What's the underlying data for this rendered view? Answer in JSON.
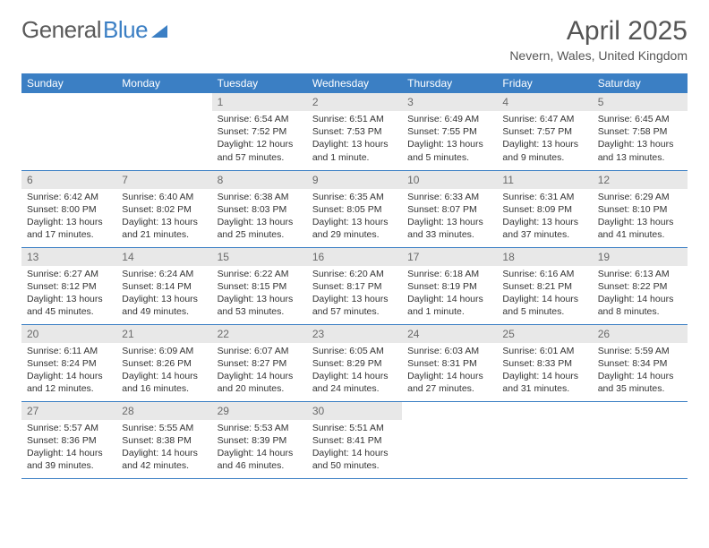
{
  "logo": {
    "text_gray": "General",
    "text_blue": "Blue"
  },
  "header": {
    "month": "April 2025",
    "location": "Nevern, Wales, United Kingdom"
  },
  "colors": {
    "header_bg": "#3b7fc4",
    "header_text": "#ffffff",
    "daynum_bg": "#e8e8e8",
    "daynum_text": "#6a6a6a",
    "body_text": "#333333",
    "row_border": "#3b7fc4"
  },
  "weekdays": [
    "Sunday",
    "Monday",
    "Tuesday",
    "Wednesday",
    "Thursday",
    "Friday",
    "Saturday"
  ],
  "weeks": [
    [
      null,
      null,
      {
        "d": "1",
        "sr": "Sunrise: 6:54 AM",
        "ss": "Sunset: 7:52 PM",
        "dl1": "Daylight: 12 hours",
        "dl2": "and 57 minutes."
      },
      {
        "d": "2",
        "sr": "Sunrise: 6:51 AM",
        "ss": "Sunset: 7:53 PM",
        "dl1": "Daylight: 13 hours",
        "dl2": "and 1 minute."
      },
      {
        "d": "3",
        "sr": "Sunrise: 6:49 AM",
        "ss": "Sunset: 7:55 PM",
        "dl1": "Daylight: 13 hours",
        "dl2": "and 5 minutes."
      },
      {
        "d": "4",
        "sr": "Sunrise: 6:47 AM",
        "ss": "Sunset: 7:57 PM",
        "dl1": "Daylight: 13 hours",
        "dl2": "and 9 minutes."
      },
      {
        "d": "5",
        "sr": "Sunrise: 6:45 AM",
        "ss": "Sunset: 7:58 PM",
        "dl1": "Daylight: 13 hours",
        "dl2": "and 13 minutes."
      }
    ],
    [
      {
        "d": "6",
        "sr": "Sunrise: 6:42 AM",
        "ss": "Sunset: 8:00 PM",
        "dl1": "Daylight: 13 hours",
        "dl2": "and 17 minutes."
      },
      {
        "d": "7",
        "sr": "Sunrise: 6:40 AM",
        "ss": "Sunset: 8:02 PM",
        "dl1": "Daylight: 13 hours",
        "dl2": "and 21 minutes."
      },
      {
        "d": "8",
        "sr": "Sunrise: 6:38 AM",
        "ss": "Sunset: 8:03 PM",
        "dl1": "Daylight: 13 hours",
        "dl2": "and 25 minutes."
      },
      {
        "d": "9",
        "sr": "Sunrise: 6:35 AM",
        "ss": "Sunset: 8:05 PM",
        "dl1": "Daylight: 13 hours",
        "dl2": "and 29 minutes."
      },
      {
        "d": "10",
        "sr": "Sunrise: 6:33 AM",
        "ss": "Sunset: 8:07 PM",
        "dl1": "Daylight: 13 hours",
        "dl2": "and 33 minutes."
      },
      {
        "d": "11",
        "sr": "Sunrise: 6:31 AM",
        "ss": "Sunset: 8:09 PM",
        "dl1": "Daylight: 13 hours",
        "dl2": "and 37 minutes."
      },
      {
        "d": "12",
        "sr": "Sunrise: 6:29 AM",
        "ss": "Sunset: 8:10 PM",
        "dl1": "Daylight: 13 hours",
        "dl2": "and 41 minutes."
      }
    ],
    [
      {
        "d": "13",
        "sr": "Sunrise: 6:27 AM",
        "ss": "Sunset: 8:12 PM",
        "dl1": "Daylight: 13 hours",
        "dl2": "and 45 minutes."
      },
      {
        "d": "14",
        "sr": "Sunrise: 6:24 AM",
        "ss": "Sunset: 8:14 PM",
        "dl1": "Daylight: 13 hours",
        "dl2": "and 49 minutes."
      },
      {
        "d": "15",
        "sr": "Sunrise: 6:22 AM",
        "ss": "Sunset: 8:15 PM",
        "dl1": "Daylight: 13 hours",
        "dl2": "and 53 minutes."
      },
      {
        "d": "16",
        "sr": "Sunrise: 6:20 AM",
        "ss": "Sunset: 8:17 PM",
        "dl1": "Daylight: 13 hours",
        "dl2": "and 57 minutes."
      },
      {
        "d": "17",
        "sr": "Sunrise: 6:18 AM",
        "ss": "Sunset: 8:19 PM",
        "dl1": "Daylight: 14 hours",
        "dl2": "and 1 minute."
      },
      {
        "d": "18",
        "sr": "Sunrise: 6:16 AM",
        "ss": "Sunset: 8:21 PM",
        "dl1": "Daylight: 14 hours",
        "dl2": "and 5 minutes."
      },
      {
        "d": "19",
        "sr": "Sunrise: 6:13 AM",
        "ss": "Sunset: 8:22 PM",
        "dl1": "Daylight: 14 hours",
        "dl2": "and 8 minutes."
      }
    ],
    [
      {
        "d": "20",
        "sr": "Sunrise: 6:11 AM",
        "ss": "Sunset: 8:24 PM",
        "dl1": "Daylight: 14 hours",
        "dl2": "and 12 minutes."
      },
      {
        "d": "21",
        "sr": "Sunrise: 6:09 AM",
        "ss": "Sunset: 8:26 PM",
        "dl1": "Daylight: 14 hours",
        "dl2": "and 16 minutes."
      },
      {
        "d": "22",
        "sr": "Sunrise: 6:07 AM",
        "ss": "Sunset: 8:27 PM",
        "dl1": "Daylight: 14 hours",
        "dl2": "and 20 minutes."
      },
      {
        "d": "23",
        "sr": "Sunrise: 6:05 AM",
        "ss": "Sunset: 8:29 PM",
        "dl1": "Daylight: 14 hours",
        "dl2": "and 24 minutes."
      },
      {
        "d": "24",
        "sr": "Sunrise: 6:03 AM",
        "ss": "Sunset: 8:31 PM",
        "dl1": "Daylight: 14 hours",
        "dl2": "and 27 minutes."
      },
      {
        "d": "25",
        "sr": "Sunrise: 6:01 AM",
        "ss": "Sunset: 8:33 PM",
        "dl1": "Daylight: 14 hours",
        "dl2": "and 31 minutes."
      },
      {
        "d": "26",
        "sr": "Sunrise: 5:59 AM",
        "ss": "Sunset: 8:34 PM",
        "dl1": "Daylight: 14 hours",
        "dl2": "and 35 minutes."
      }
    ],
    [
      {
        "d": "27",
        "sr": "Sunrise: 5:57 AM",
        "ss": "Sunset: 8:36 PM",
        "dl1": "Daylight: 14 hours",
        "dl2": "and 39 minutes."
      },
      {
        "d": "28",
        "sr": "Sunrise: 5:55 AM",
        "ss": "Sunset: 8:38 PM",
        "dl1": "Daylight: 14 hours",
        "dl2": "and 42 minutes."
      },
      {
        "d": "29",
        "sr": "Sunrise: 5:53 AM",
        "ss": "Sunset: 8:39 PM",
        "dl1": "Daylight: 14 hours",
        "dl2": "and 46 minutes."
      },
      {
        "d": "30",
        "sr": "Sunrise: 5:51 AM",
        "ss": "Sunset: 8:41 PM",
        "dl1": "Daylight: 14 hours",
        "dl2": "and 50 minutes."
      },
      null,
      null,
      null
    ]
  ]
}
